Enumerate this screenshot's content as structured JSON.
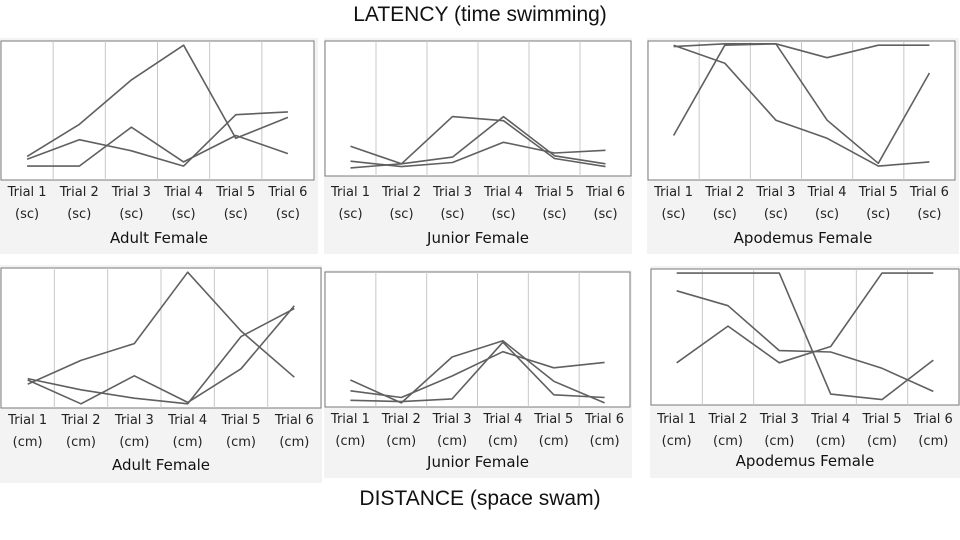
{
  "titles": {
    "top": "LATENCY (time swimming)",
    "bottom": "DISTANCE (space swam)"
  },
  "chart_data": [
    {
      "type": "line",
      "title": "Adult Female",
      "categories": [
        "Trial 1",
        "Trial 2",
        "Trial 3",
        "Trial 4",
        "Trial 5",
        "Trial 6"
      ],
      "units": [
        "(sc)",
        "(sc)",
        "(sc)",
        "(sc)",
        "(sc)",
        "(sc)"
      ],
      "ylim": [
        0,
        100
      ],
      "grid": true,
      "series": [
        {
          "values": [
            17,
            40,
            72,
            97,
            30,
            45
          ]
        },
        {
          "values": [
            15,
            29,
            21,
            10,
            47,
            49
          ]
        },
        {
          "values": [
            10,
            10,
            38,
            13,
            32,
            19
          ]
        }
      ]
    },
    {
      "type": "line",
      "title": "Junior Female",
      "categories": [
        "Trial 1",
        "Trial 2",
        "Trial 3",
        "Trial 4",
        "Trial 5",
        "Trial 6"
      ],
      "units": [
        "(sc)",
        "(sc)",
        "(sc)",
        "(sc)",
        "(sc)",
        "(sc)"
      ],
      "ylim": [
        0,
        100
      ],
      "grid": true,
      "series": [
        {
          "values": [
            22,
            9,
            44,
            41,
            13,
            7
          ]
        },
        {
          "values": [
            6,
            9,
            14,
            44,
            15,
            9
          ]
        },
        {
          "values": [
            11,
            7,
            10,
            25,
            17,
            19
          ]
        }
      ]
    },
    {
      "type": "line",
      "title": "Apodemus Female",
      "categories": [
        "Trial 1",
        "Trial 2",
        "Trial 3",
        "Trial 4",
        "Trial 5",
        "Trial 6"
      ],
      "units": [
        "(sc)",
        "(sc)",
        "(sc)",
        "(sc)",
        "(sc)",
        "(sc)"
      ],
      "ylim": [
        0,
        100
      ],
      "grid": true,
      "series": [
        {
          "values": [
            96,
            98,
            98,
            88,
            97,
            97
          ]
        },
        {
          "values": [
            97,
            84,
            43,
            30,
            10,
            13
          ]
        },
        {
          "values": [
            32,
            97,
            98,
            43,
            12,
            77
          ]
        }
      ]
    },
    {
      "type": "line",
      "title": "Adult Female",
      "categories": [
        "Trial 1",
        "Trial 2",
        "Trial 3",
        "Trial 4",
        "Trial 5",
        "Trial 6"
      ],
      "units": [
        "(cm)",
        "(cm)",
        "(cm)",
        "(cm)",
        "(cm)",
        "(cm)"
      ],
      "ylim": [
        0,
        100
      ],
      "grid": true,
      "series": [
        {
          "values": [
            17,
            34,
            46,
            97,
            55,
            22
          ]
        },
        {
          "values": [
            20,
            3,
            23,
            4,
            28,
            73
          ]
        },
        {
          "values": [
            21,
            13,
            7,
            3,
            51,
            71
          ]
        }
      ]
    },
    {
      "type": "line",
      "title": "Junior Female",
      "categories": [
        "Trial 1",
        "Trial 2",
        "Trial 3",
        "Trial 4",
        "Trial 5",
        "Trial 6"
      ],
      "units": [
        "(cm)",
        "(cm)",
        "(cm)",
        "(cm)",
        "(cm)",
        "(cm)"
      ],
      "ylim": [
        0,
        100
      ],
      "grid": true,
      "series": [
        {
          "values": [
            20,
            3,
            37,
            49,
            19,
            3
          ]
        },
        {
          "values": [
            5,
            4,
            6,
            48,
            9,
            7
          ]
        },
        {
          "values": [
            12,
            7,
            23,
            41,
            29,
            33
          ]
        }
      ]
    },
    {
      "type": "line",
      "title": "Apodemus Female",
      "categories": [
        "Trial 1",
        "Trial 2",
        "Trial 3",
        "Trial 4",
        "Trial 5",
        "Trial 6"
      ],
      "units": [
        "(cm)",
        "(cm)",
        "(cm)",
        "(cm)",
        "(cm)",
        "(cm)"
      ],
      "ylim": [
        0,
        100
      ],
      "grid": true,
      "series": [
        {
          "values": [
            97,
            97,
            97,
            8,
            4,
            33
          ]
        },
        {
          "values": [
            84,
            73,
            40,
            39,
            27,
            10
          ]
        },
        {
          "values": [
            31,
            58,
            31,
            43,
            97,
            97
          ]
        }
      ]
    }
  ]
}
